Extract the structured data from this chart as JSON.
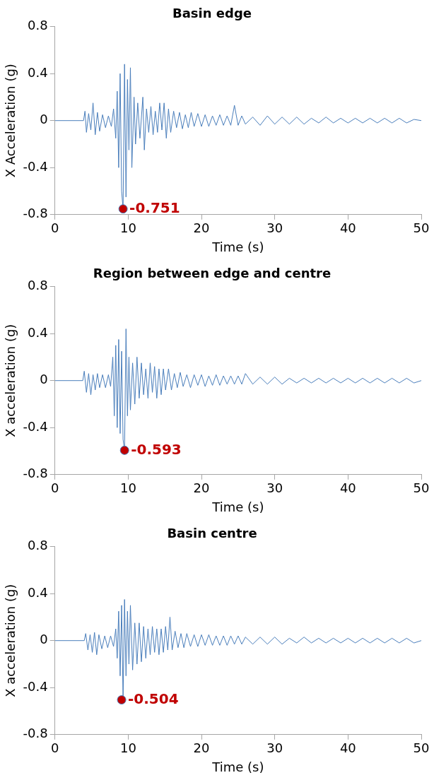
{
  "chart_data": [
    {
      "type": "line",
      "title": "Basin edge",
      "xlabel": "Time (s)",
      "ylabel": "X Acceleration (g)",
      "xlim": [
        0,
        50
      ],
      "xticks": [
        0,
        10,
        20,
        30,
        40,
        50
      ],
      "ylim": [
        -0.8,
        0.8
      ],
      "yticks": [
        -0.8,
        -0.4,
        0,
        0.4,
        0.8
      ],
      "grid": false,
      "legend": false,
      "series": [
        {
          "color": "#4a7ebb",
          "marker": "none",
          "x": [
            0,
            3.9,
            4.1,
            4.3,
            4.6,
            4.9,
            5.2,
            5.5,
            5.8,
            6.1,
            6.5,
            6.9,
            7.3,
            7.7,
            8.0,
            8.3,
            8.5,
            8.7,
            8.9,
            9.1,
            9.3,
            9.5,
            9.7,
            9.9,
            10.1,
            10.3,
            10.5,
            10.8,
            11.0,
            11.3,
            11.6,
            12.0,
            12.2,
            12.5,
            12.8,
            13.1,
            13.4,
            13.7,
            14.0,
            14.3,
            14.6,
            14.9,
            15.2,
            15.5,
            15.8,
            16.2,
            16.6,
            17.0,
            17.4,
            17.8,
            18.2,
            18.6,
            19.0,
            19.5,
            20,
            20.5,
            21,
            21.5,
            22,
            22.5,
            23,
            23.5,
            24,
            24.5,
            25,
            25.5,
            26,
            27,
            28,
            29,
            30,
            31,
            32,
            33,
            34,
            35,
            36,
            37,
            38,
            39,
            40,
            41,
            42,
            43,
            44,
            45,
            46,
            47,
            48,
            49,
            50
          ],
          "values": [
            0,
            0,
            0.08,
            -0.1,
            0.06,
            -0.08,
            0.15,
            -0.12,
            0.07,
            -0.09,
            0.05,
            -0.06,
            0.04,
            -0.05,
            0.1,
            -0.15,
            0.25,
            -0.4,
            0.4,
            -0.6,
            -0.751,
            0.48,
            -0.65,
            0.35,
            -0.25,
            0.45,
            -0.4,
            0.2,
            -0.2,
            0.15,
            -0.15,
            0.2,
            -0.25,
            0.1,
            -0.1,
            0.12,
            -0.12,
            0.08,
            -0.1,
            0.15,
            -0.08,
            0.15,
            -0.15,
            0.1,
            -0.1,
            0.08,
            -0.06,
            0.07,
            -0.07,
            0.05,
            -0.06,
            0.07,
            -0.05,
            0.06,
            -0.05,
            0.05,
            -0.05,
            0.04,
            -0.04,
            0.05,
            -0.04,
            0.04,
            -0.04,
            0.13,
            -0.04,
            0.04,
            -0.03,
            0.03,
            -0.04,
            0.04,
            -0.03,
            0.03,
            -0.03,
            0.03,
            -0.03,
            0.02,
            -0.02,
            0.03,
            -0.02,
            0.02,
            -0.02,
            0.02,
            -0.02,
            0.02,
            -0.02,
            0.02,
            -0.02,
            0.02,
            -0.02,
            0.01,
            0
          ]
        },
        {
          "type": "scatter",
          "color": "#c00000",
          "marker": "circle",
          "x": [
            9.3
          ],
          "values": [
            -0.751
          ],
          "value_labels": [
            "-0.751"
          ]
        }
      ]
    },
    {
      "type": "line",
      "title": "Region between edge and centre",
      "xlabel": "Time (s)",
      "ylabel": "X acceleration (g)",
      "xlim": [
        0,
        50
      ],
      "xticks": [
        0,
        10,
        20,
        30,
        40,
        50
      ],
      "ylim": [
        -0.8,
        0.8
      ],
      "yticks": [
        -0.8,
        -0.4,
        0,
        0.4,
        0.8
      ],
      "grid": false,
      "legend": false,
      "series": [
        {
          "color": "#4a7ebb",
          "marker": "none",
          "x": [
            0,
            3.8,
            4.0,
            4.3,
            4.6,
            4.9,
            5.2,
            5.5,
            5.8,
            6.1,
            6.5,
            6.9,
            7.3,
            7.6,
            7.9,
            8.1,
            8.3,
            8.5,
            8.7,
            8.9,
            9.1,
            9.3,
            9.5,
            9.7,
            9.9,
            10.1,
            10.3,
            10.6,
            10.9,
            11.2,
            11.5,
            11.8,
            12.1,
            12.4,
            12.7,
            13.0,
            13.3,
            13.6,
            13.9,
            14.2,
            14.5,
            14.8,
            15.1,
            15.5,
            15.9,
            16.3,
            16.7,
            17.1,
            17.5,
            18,
            18.5,
            19,
            19.5,
            20,
            20.5,
            21,
            21.5,
            22,
            22.5,
            23,
            23.5,
            24,
            24.5,
            25,
            25.5,
            26,
            27,
            28,
            29,
            30,
            31,
            32,
            33,
            34,
            35,
            36,
            37,
            38,
            39,
            40,
            41,
            42,
            43,
            44,
            45,
            46,
            47,
            48,
            49,
            50
          ],
          "values": [
            0,
            0,
            0.08,
            -0.1,
            0.06,
            -0.12,
            0.05,
            -0.08,
            0.06,
            -0.06,
            0.05,
            -0.06,
            0.05,
            -0.05,
            0.2,
            -0.3,
            0.3,
            -0.4,
            0.35,
            -0.45,
            0.25,
            -0.5,
            -0.593,
            0.44,
            -0.3,
            0.2,
            -0.25,
            0.15,
            -0.2,
            0.2,
            -0.15,
            0.15,
            -0.12,
            0.1,
            -0.15,
            0.15,
            -0.1,
            0.12,
            -0.15,
            0.1,
            -0.12,
            0.1,
            -0.08,
            0.1,
            -0.08,
            0.06,
            -0.06,
            0.07,
            -0.05,
            0.05,
            -0.06,
            0.05,
            -0.04,
            0.05,
            -0.05,
            0.04,
            -0.04,
            0.05,
            -0.04,
            0.04,
            -0.03,
            0.04,
            -0.03,
            0.04,
            -0.03,
            0.06,
            -0.03,
            0.03,
            -0.03,
            0.03,
            -0.03,
            0.02,
            -0.02,
            0.02,
            -0.02,
            0.02,
            -0.02,
            0.02,
            -0.02,
            0.02,
            -0.02,
            0.02,
            -0.02,
            0.02,
            -0.02,
            0.02,
            -0.02,
            0.02,
            -0.02,
            0
          ]
        },
        {
          "type": "scatter",
          "color": "#c00000",
          "marker": "circle",
          "x": [
            9.5
          ],
          "values": [
            -0.593
          ],
          "value_labels": [
            "-0.593"
          ]
        }
      ]
    },
    {
      "type": "line",
      "title": "Basin centre",
      "xlabel": "Time (s)",
      "ylabel": "X acceleration (g)",
      "xlim": [
        0,
        50
      ],
      "xticks": [
        0,
        10,
        20,
        30,
        40,
        50
      ],
      "ylim": [
        -0.8,
        0.8
      ],
      "yticks": [
        -0.8,
        -0.4,
        0,
        0.4,
        0.8
      ],
      "grid": false,
      "legend": false,
      "series": [
        {
          "color": "#4a7ebb",
          "marker": "none",
          "x": [
            0,
            4.0,
            4.2,
            4.5,
            4.8,
            5.1,
            5.4,
            5.7,
            6.0,
            6.4,
            6.8,
            7.2,
            7.6,
            8.0,
            8.3,
            8.5,
            8.7,
            8.9,
            9.1,
            9.3,
            9.5,
            9.7,
            9.9,
            10.1,
            10.3,
            10.6,
            10.9,
            11.2,
            11.5,
            11.8,
            12.1,
            12.4,
            12.7,
            13.0,
            13.3,
            13.6,
            13.9,
            14.2,
            14.5,
            14.8,
            15.1,
            15.4,
            15.7,
            16.0,
            16.4,
            16.8,
            17.2,
            17.6,
            18,
            18.5,
            19,
            19.5,
            20,
            20.5,
            21,
            21.5,
            22,
            22.5,
            23,
            23.5,
            24,
            24.5,
            25,
            25.5,
            26,
            27,
            28,
            29,
            30,
            31,
            32,
            33,
            34,
            35,
            36,
            37,
            38,
            39,
            40,
            41,
            42,
            43,
            44,
            45,
            46,
            47,
            48,
            49,
            50
          ],
          "values": [
            0,
            0,
            0.06,
            -0.08,
            0.05,
            -0.1,
            0.07,
            -0.12,
            0.05,
            -0.07,
            0.04,
            -0.06,
            0.04,
            -0.05,
            0.1,
            -0.15,
            0.25,
            -0.3,
            0.3,
            -0.504,
            0.35,
            -0.3,
            0.25,
            -0.2,
            0.3,
            -0.25,
            0.15,
            -0.2,
            0.15,
            -0.18,
            0.12,
            -0.15,
            0.1,
            -0.12,
            0.12,
            -0.1,
            0.1,
            -0.12,
            0.1,
            -0.1,
            0.12,
            -0.08,
            0.2,
            -0.08,
            0.08,
            -0.06,
            0.06,
            -0.06,
            0.06,
            -0.05,
            0.05,
            -0.05,
            0.05,
            -0.04,
            0.05,
            -0.04,
            0.04,
            -0.04,
            0.04,
            -0.04,
            0.04,
            -0.03,
            0.04,
            -0.03,
            0.03,
            -0.03,
            0.03,
            -0.03,
            0.03,
            -0.03,
            0.02,
            -0.02,
            0.03,
            -0.02,
            0.02,
            -0.02,
            0.02,
            -0.02,
            0.02,
            -0.02,
            0.02,
            -0.02,
            0.02,
            -0.02,
            0.02,
            -0.02,
            0.02,
            -0.02,
            0
          ]
        },
        {
          "type": "scatter",
          "color": "#c00000",
          "marker": "circle",
          "x": [
            9.1
          ],
          "values": [
            -0.504
          ],
          "value_labels": [
            "-0.504"
          ]
        }
      ]
    }
  ]
}
